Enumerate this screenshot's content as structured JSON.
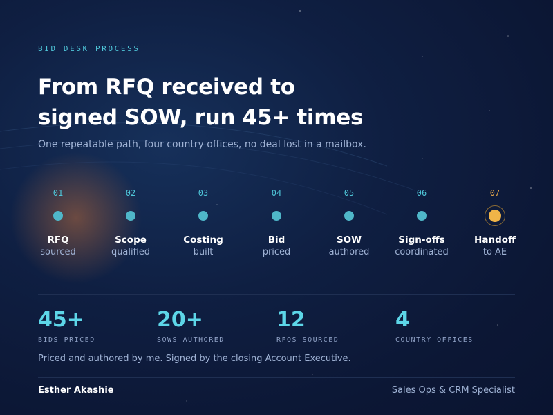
{
  "eyebrow": "BID DESK PROCESS",
  "headline": {
    "line1": "From RFQ received to",
    "line2": "signed SOW, run 45+ times"
  },
  "subtitle": "One repeatable path, four country offices, no deal lost in a mailbox.",
  "steps": [
    {
      "num": "01",
      "title": "RFQ",
      "sub": "sourced"
    },
    {
      "num": "02",
      "title": "Scope",
      "sub": "qualified"
    },
    {
      "num": "03",
      "title": "Costing",
      "sub": "built"
    },
    {
      "num": "04",
      "title": "Bid",
      "sub": "priced"
    },
    {
      "num": "05",
      "title": "SOW",
      "sub": "authored"
    },
    {
      "num": "06",
      "title": "Sign-offs",
      "sub": "coordinated"
    },
    {
      "num": "07",
      "title": "Handoff",
      "sub": "to AE"
    }
  ],
  "stats": [
    {
      "value": "45+",
      "label": "BIDS PRICED"
    },
    {
      "value": "20+",
      "label": "SOWS AUTHORED"
    },
    {
      "value": "12",
      "label": "RFQS SOURCED"
    },
    {
      "value": "4",
      "label": "COUNTRY OFFICES"
    }
  ],
  "footnote": "Priced and authored by me. Signed by the closing Account Executive.",
  "author": "Esther Akashie",
  "role": "Sales Ops & CRM Specialist",
  "colors": {
    "accent": "#4fc6d8",
    "stat_value": "#5dd6e8",
    "final_step": "#f0b448",
    "background": "#0c1735"
  }
}
